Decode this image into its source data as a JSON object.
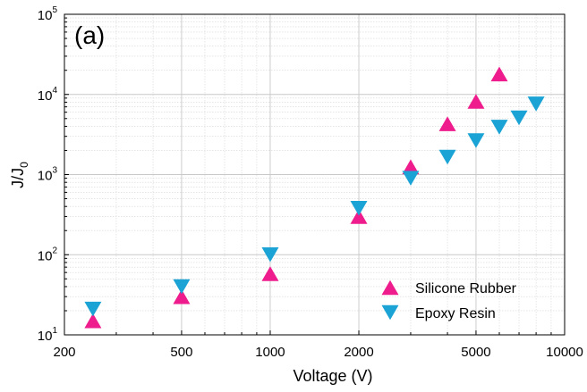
{
  "chart_data": {
    "type": "scatter",
    "panel_label": "(a)",
    "xlabel": "Voltage (V)",
    "ylabel": {
      "main": "J/J",
      "sub": "0"
    },
    "x_scale": "log",
    "y_scale": "log",
    "xlim": [
      200,
      10000
    ],
    "ylim": [
      10,
      100000
    ],
    "x_ticks": [
      {
        "value": 200,
        "label": "200"
      },
      {
        "value": 500,
        "label": "500"
      },
      {
        "value": 1000,
        "label": "1000"
      },
      {
        "value": 2000,
        "label": "2000"
      },
      {
        "value": 5000,
        "label": "5000"
      },
      {
        "value": 10000,
        "label": "10000"
      }
    ],
    "y_ticks": [
      {
        "value": 10,
        "base": "10",
        "exp": "1"
      },
      {
        "value": 100,
        "base": "10",
        "exp": "2"
      },
      {
        "value": 1000,
        "base": "10",
        "exp": "3"
      },
      {
        "value": 10000,
        "base": "10",
        "exp": "4"
      },
      {
        "value": 100000,
        "base": "10",
        "exp": "5"
      }
    ],
    "grid": true,
    "legend_position": "bottom-right",
    "series": [
      {
        "name": "Silicone Rubber",
        "marker": "triangle-up",
        "color": "#ee1c8c",
        "x": [
          250,
          500,
          1000,
          2000,
          3000,
          4000,
          5000,
          6000
        ],
        "y": [
          15,
          30,
          58,
          300,
          1250,
          4300,
          8200,
          18000
        ]
      },
      {
        "name": "Epoxy Resin",
        "marker": "triangle-down",
        "color": "#1aa3d4",
        "x": [
          250,
          500,
          1000,
          2000,
          3000,
          4000,
          5000,
          6000,
          7000,
          8000
        ],
        "y": [
          21,
          40,
          100,
          380,
          900,
          1650,
          2650,
          3900,
          5100,
          7600
        ]
      }
    ]
  }
}
